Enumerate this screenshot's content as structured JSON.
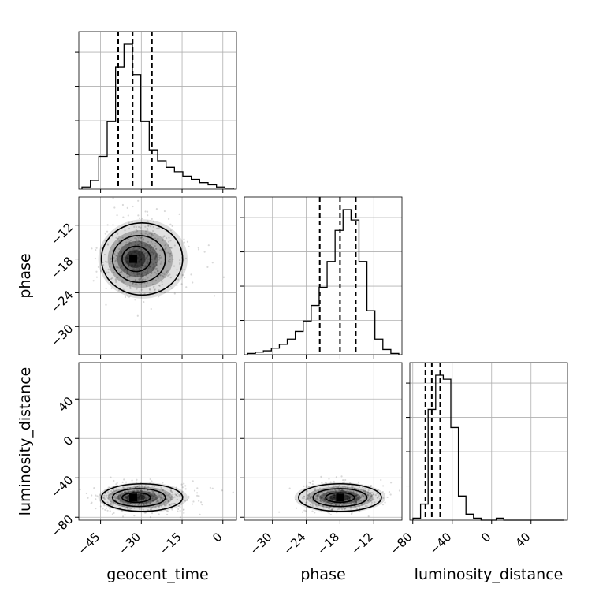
{
  "chart_data": {
    "type": "corner",
    "parameters": [
      "geocent_time",
      "phase",
      "luminosity_distance"
    ],
    "axis_labels": {
      "x": [
        "geocent_time",
        "phase",
        "luminosity_distance"
      ],
      "y": [
        "phase",
        "luminosity_distance"
      ]
    },
    "ranges": {
      "geocent_time": [
        -53,
        5
      ],
      "phase": [
        -35,
        -7
      ],
      "luminosity_distance": [
        -83,
        77
      ]
    },
    "ticks": {
      "geocent_time": [
        -45,
        -30,
        -15,
        0
      ],
      "phase": [
        -30,
        -24,
        -18,
        -12
      ],
      "luminosity_distance": [
        -80,
        -40,
        0,
        40
      ]
    },
    "grid": true,
    "quantiles": {
      "geocent_time": [
        -38.5,
        -33.2,
        -26.1
      ],
      "phase": [
        -21.6,
        -18.0,
        -15.2
      ],
      "luminosity_distance": [
        -67.2,
        -60.7,
        -52.2
      ]
    },
    "histograms": {
      "geocent_time": [
        2,
        8,
        30,
        62,
        112,
        133,
        105,
        62,
        36,
        26,
        20,
        16,
        12,
        9,
        6,
        4,
        2,
        1
      ],
      "phase": [
        1,
        2,
        3,
        5,
        8,
        12,
        18,
        26,
        38,
        52,
        72,
        96,
        112,
        104,
        72,
        34,
        12,
        4,
        1
      ],
      "luminosity_distance": [
        1,
        8,
        55,
        72,
        70,
        46,
        12,
        3,
        1,
        0,
        0,
        1,
        0,
        0,
        0,
        0,
        0,
        0,
        0,
        0
      ]
    },
    "scatter_2d": [
      {
        "x": "geocent_time",
        "y": "phase",
        "peak": [
          -33,
          -18
        ],
        "spread": [
          6.5,
          3.2
        ]
      },
      {
        "x": "geocent_time",
        "y": "luminosity_distance",
        "peak": [
          -33,
          -60
        ],
        "spread": [
          6.5,
          7
        ]
      },
      {
        "x": "phase",
        "y": "luminosity_distance",
        "peak": [
          -18,
          -60
        ],
        "spread": [
          3.2,
          7
        ]
      }
    ]
  }
}
